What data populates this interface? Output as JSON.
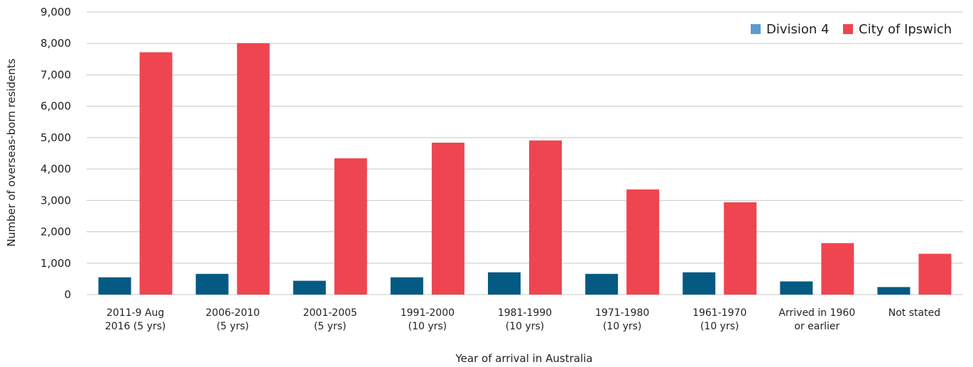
{
  "chart_data": {
    "type": "bar",
    "title": "",
    "xlabel": "Year of arrival in Australia",
    "ylabel": "Number of overseas-born residents",
    "ylim": [
      0,
      9000
    ],
    "yticks": [
      0,
      1000,
      2000,
      3000,
      4000,
      5000,
      6000,
      7000,
      8000,
      9000
    ],
    "ytick_labels": [
      "0",
      "1,000",
      "2,000",
      "3,000",
      "4,000",
      "5,000",
      "6,000",
      "7,000",
      "8,000",
      "9,000"
    ],
    "grid": true,
    "legend_position": "top-right",
    "categories": [
      [
        "2011-9 Aug",
        "2016 (5 yrs)"
      ],
      [
        "2006-2010",
        "(5 yrs)"
      ],
      [
        "2001-2005",
        "(5 yrs)"
      ],
      [
        "1991-2000",
        "(10 yrs)"
      ],
      [
        "1981-1990",
        "(10 yrs)"
      ],
      [
        "1971-1980",
        "(10 yrs)"
      ],
      [
        "1961-1970",
        "(10 yrs)"
      ],
      [
        "Arrived in 1960",
        "or earlier"
      ],
      [
        "Not stated"
      ]
    ],
    "series": [
      {
        "name": "Division 4",
        "color": "#045a83",
        "legend_color": "#5b9bd5",
        "values": [
          550,
          660,
          440,
          550,
          710,
          660,
          710,
          420,
          240
        ]
      },
      {
        "name": "City of Ipswich",
        "color": "#ef4550",
        "legend_color": "#ef4550",
        "values": [
          7720,
          8010,
          4340,
          4840,
          4910,
          3350,
          2940,
          1640,
          1300
        ]
      }
    ]
  }
}
